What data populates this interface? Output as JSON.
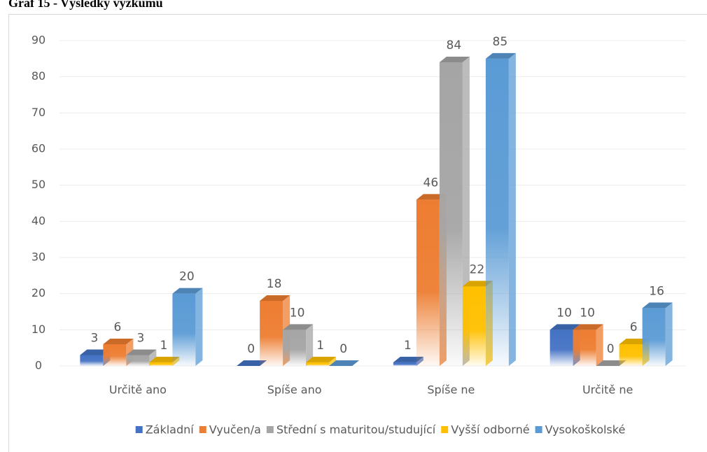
{
  "chart_data": {
    "type": "bar3d",
    "title": "Graf 15 - Výsledky výzkumu",
    "categories": [
      "Určitě ano",
      "Spíše ano",
      "Spíše ne",
      "Určitě ne"
    ],
    "series": [
      {
        "name": "Základní",
        "color": "#4472c4",
        "values": [
          3,
          0,
          1,
          10
        ]
      },
      {
        "name": "Vyučen/a",
        "color": "#ed7d31",
        "values": [
          6,
          18,
          46,
          10
        ]
      },
      {
        "name": "Střední s maturitou/studující",
        "color": "#a5a5a5",
        "values": [
          3,
          10,
          84,
          0
        ]
      },
      {
        "name": "Vyšší odborné",
        "color": "#ffc000",
        "values": [
          1,
          1,
          22,
          6
        ]
      },
      {
        "name": "Vysokoškolské",
        "color": "#5b9bd5",
        "values": [
          20,
          0,
          85,
          16
        ]
      }
    ],
    "ylim": [
      0,
      90
    ],
    "yticks": [
      0,
      10,
      20,
      30,
      40,
      50,
      60,
      70,
      80,
      90
    ],
    "grid": true,
    "legend": "bottom"
  }
}
